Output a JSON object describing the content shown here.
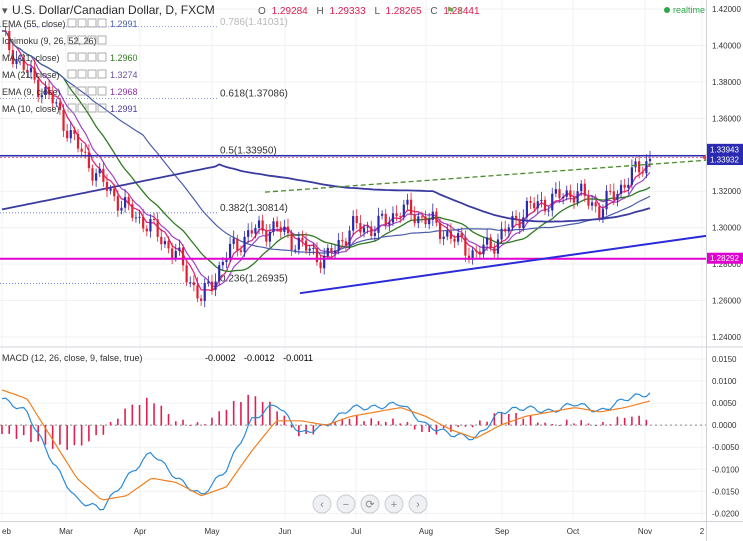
{
  "header": {
    "symbol_title": "U.S. Dollar/Canadian Dollar, D, FXCM",
    "ohlc": [
      {
        "key": "O",
        "value": "1.29284"
      },
      {
        "key": "H",
        "value": "1.29333"
      },
      {
        "key": "L",
        "value": "1.28265"
      },
      {
        "key": "C",
        "value": "1.28441"
      }
    ],
    "alert_count": "1",
    "realtime_label": "realtime"
  },
  "legend": [
    {
      "label": "EMA (55, close)",
      "value": "1.2991",
      "color": "#4b5da8"
    },
    {
      "label": "Ichimoku (9, 26, 52, 26)",
      "value": "",
      "color": "#4a6fb5"
    },
    {
      "label": "MA (21, close)",
      "value": "1.2960",
      "color": "#2f7a1f"
    },
    {
      "label": "MA (21, close)",
      "value": "1.3274",
      "color": "#6b4fa0"
    },
    {
      "label": "EMA (9, close)",
      "value": "1.2968",
      "color": "#8d2fa8"
    },
    {
      "label": "MA (10, close)",
      "value": "1.2991",
      "color": "#4b3aa0"
    }
  ],
  "fib_levels": [
    {
      "label": "0.786(1.41031)",
      "value": 1.41031
    },
    {
      "label": "0.618(1.37086)",
      "value": 1.37086
    },
    {
      "label": "0.5(1.33950)",
      "value": 1.3395
    },
    {
      "label": "0.382(1.30814)",
      "value": 1.30814
    },
    {
      "label": "0.236(1.26935)",
      "value": 1.26935
    }
  ],
  "price_badges": [
    {
      "value": 1.33943,
      "text": "1.33943",
      "bg": "#2a2bb0"
    },
    {
      "value": 1.33932,
      "text": "1.33932",
      "bg": "#2a2bb0"
    },
    {
      "value": 1.28292,
      "text": "1.28292",
      "bg": "#e000d0"
    }
  ],
  "macd_legend": {
    "label": "MACD (12, 26, close, 9, false, true)",
    "values": [
      {
        "text": "-0.0002",
        "color": "#e02050"
      },
      {
        "text": "-0.0012",
        "color": "#2a8ad8"
      },
      {
        "text": "-0.0011",
        "color": "#f08020"
      }
    ]
  },
  "x_axis_labels": [
    "eb",
    "Mar",
    "Apr",
    "May",
    "Jun",
    "Jul",
    "Aug",
    "Sep",
    "Oct",
    "Nov",
    "2"
  ],
  "nav_buttons": [
    {
      "name": "scroll-left",
      "glyph": "‹"
    },
    {
      "name": "zoom-out",
      "glyph": "−"
    },
    {
      "name": "reset",
      "glyph": "⟳"
    },
    {
      "name": "zoom-in",
      "glyph": "+"
    },
    {
      "name": "scroll-right",
      "glyph": "›"
    }
  ],
  "chart_data": [
    {
      "type": "line",
      "pane": "price",
      "ylim": [
        1.235,
        1.425
      ],
      "y_ticks": [
        1.24,
        1.26,
        1.28,
        1.3,
        1.32,
        1.34,
        1.36,
        1.38,
        1.4,
        1.42
      ],
      "y_tick_labels": [
        "1.24000",
        "1.26000",
        "1.28000",
        "1.30000",
        "1.32000",
        "1.34000",
        "1.36000",
        "1.38000",
        "1.40000",
        "1.42000"
      ],
      "x_month_labels": [
        "eb",
        "Mar",
        "Apr",
        "May",
        "Jun",
        "Jul",
        "Aug",
        "Sep",
        "Oct",
        "Nov",
        "2"
      ],
      "series": [
        {
          "name": "U.S. Dollar/Canadian Dollar, D, FXCM",
          "x": [
            "Feb",
            "Feb",
            "Mar",
            "Mar",
            "Mar",
            "Apr",
            "Apr",
            "Apr",
            "May",
            "May",
            "May",
            "Jun",
            "Jun",
            "Jun",
            "Jul",
            "Jul",
            "Jul",
            "Aug",
            "Aug",
            "Aug",
            "Sep",
            "Sep",
            "Sep",
            "Oct",
            "Oct",
            "Oct",
            "Nov"
          ],
          "values": [
            1.405,
            1.385,
            1.37,
            1.345,
            1.325,
            1.31,
            1.3,
            1.285,
            1.26,
            1.285,
            1.298,
            1.3,
            1.29,
            1.282,
            1.3,
            1.3,
            1.31,
            1.305,
            1.295,
            1.285,
            1.295,
            1.31,
            1.315,
            1.32,
            1.31,
            1.325,
            1.338
          ]
        }
      ]
    },
    {
      "type": "line",
      "pane": "MACD",
      "ylim": [
        -0.0215,
        0.0175
      ],
      "y_ticks": [
        -0.02,
        -0.015,
        -0.01,
        -0.005,
        0,
        0.005,
        0.01,
        0.015
      ],
      "y_tick_labels": [
        "-0.0200",
        "-0.0150",
        "-0.0100",
        "-0.0050",
        "0.0000",
        "0.0050",
        "0.0100",
        "0.0150"
      ],
      "series": [
        {
          "name": "MACD",
          "values": [
            0.006,
            0.003,
            -0.008,
            -0.017,
            -0.019,
            -0.012,
            -0.006,
            -0.012,
            -0.016,
            -0.01,
            0.001,
            0.005,
            -0.002,
            0.0,
            0.004,
            0.004,
            0.005,
            0.0,
            -0.002,
            -0.003,
            0.003,
            0.004,
            0.003,
            0.005,
            0.003,
            0.006,
            0.0072
          ]
        },
        {
          "name": "Signal",
          "values": [
            0.008,
            0.006,
            -0.003,
            -0.012,
            -0.017,
            -0.016,
            -0.012,
            -0.013,
            -0.016,
            -0.014,
            -0.006,
            0.001,
            0.001,
            0.0,
            0.002,
            0.003,
            0.004,
            0.002,
            -0.001,
            -0.003,
            0.0,
            0.002,
            0.003,
            0.004,
            0.003,
            0.004,
            0.0055
          ]
        }
      ]
    }
  ]
}
